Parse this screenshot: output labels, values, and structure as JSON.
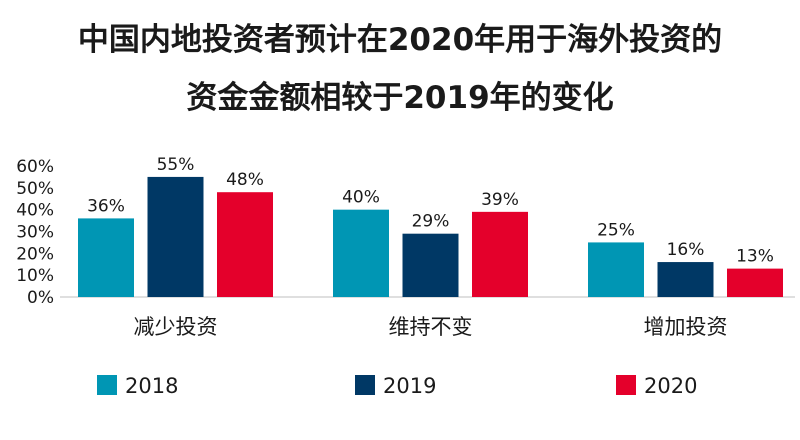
{
  "title_lines": [
    "中国内地投资者预计在2020年用于海外投资的",
    "资金金额相较于2019年的变化"
  ],
  "chart_data": {
    "type": "bar",
    "title": "中国内地投资者预计在2020年用于海外投资的资金金额相较于2019年的变化",
    "categories": [
      "减少投资",
      "维持不变",
      "增加投资"
    ],
    "series": [
      {
        "name": "2018",
        "color": "#0096B4",
        "values": [
          36,
          40,
          25
        ]
      },
      {
        "name": "2019",
        "color": "#003865",
        "values": [
          55,
          29,
          16
        ]
      },
      {
        "name": "2020",
        "color": "#E4002B",
        "values": [
          48,
          39,
          13
        ]
      }
    ],
    "ylim": [
      0,
      60
    ],
    "yticks": [
      "0%",
      "10%",
      "20%",
      "30%",
      "40%",
      "50%",
      "60%"
    ],
    "value_suffix": "%",
    "grid": false,
    "legend_position": "bottom"
  }
}
